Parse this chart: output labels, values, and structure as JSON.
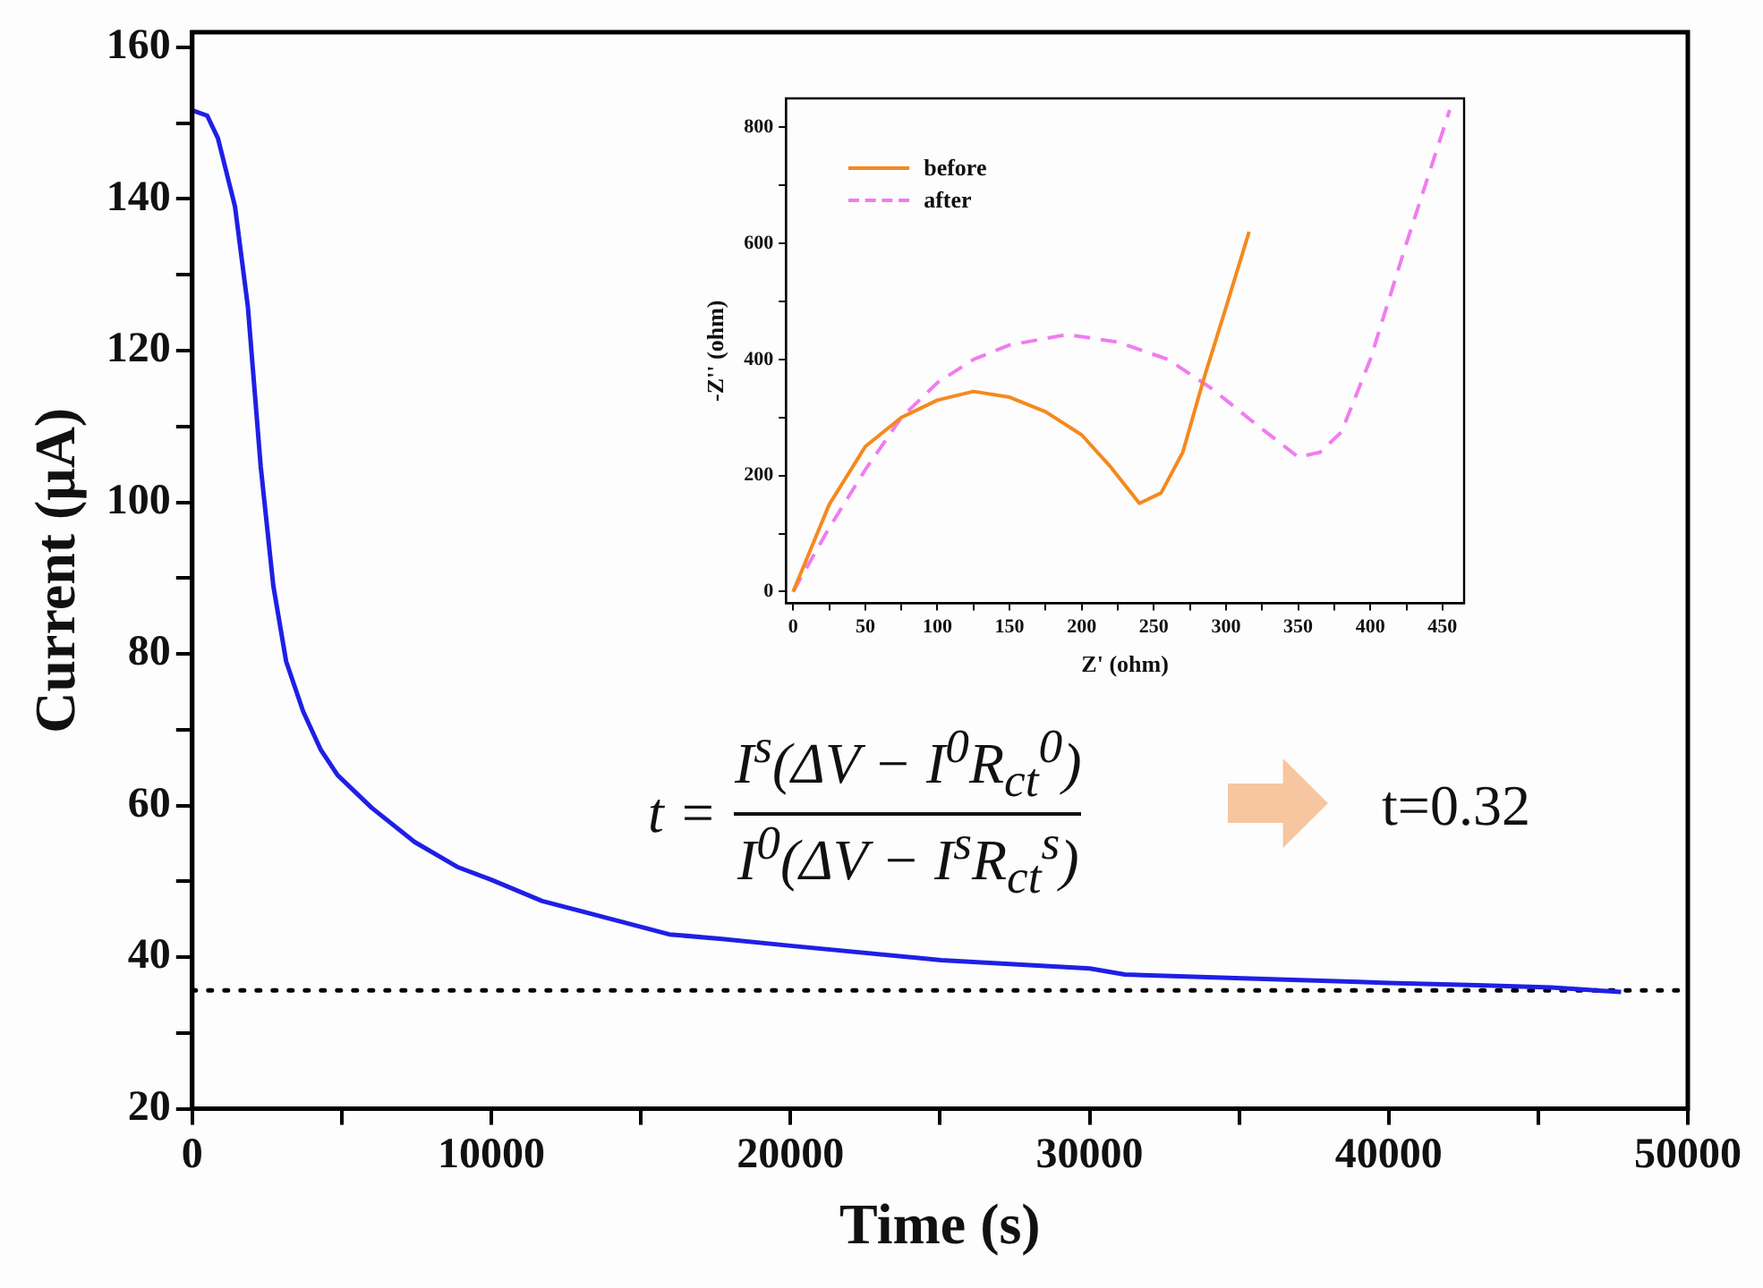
{
  "chart_data": [
    {
      "type": "line",
      "xlabel": "Time (s)",
      "ylabel": "Current (μA)",
      "x": [
        0,
        500,
        860,
        1430,
        1860,
        2290,
        2710,
        3140,
        3710,
        4290,
        4860,
        6000,
        7430,
        8860,
        10000,
        11700,
        13450,
        15950,
        17710,
        20000,
        25040,
        30000,
        31180,
        35110,
        40030,
        42980,
        45440,
        47770
      ],
      "series": [
        {
          "color": "#1f1fe6",
          "values": [
            151.7,
            151,
            148,
            139,
            125.8,
            104.7,
            89,
            79,
            72.4,
            67.4,
            64,
            59.7,
            55.2,
            51.9,
            50.2,
            47.4,
            45.6,
            43,
            42.4,
            41.5,
            39.6,
            38.5,
            37.7,
            37.2,
            36.6,
            36.3,
            36,
            35.4
          ]
        }
      ],
      "xlim": [
        0,
        50000
      ],
      "ylim": [
        20,
        162
      ],
      "xticks": [
        0,
        {
          "value": 5000,
          "label": null
        },
        10000,
        {
          "value": 15000,
          "label": null
        },
        20000,
        {
          "value": 25000,
          "label": null
        },
        30000,
        {
          "value": 35000,
          "label": null
        },
        40000,
        {
          "value": 45000,
          "label": null
        },
        50000
      ],
      "yticks": [
        20,
        {
          "value": 30,
          "label": null
        },
        40,
        {
          "value": 50,
          "label": null
        },
        60,
        {
          "value": 70,
          "label": null
        },
        80,
        {
          "value": 90,
          "label": null
        },
        100,
        {
          "value": 110,
          "label": null
        },
        120,
        {
          "value": 130,
          "label": null
        },
        140,
        {
          "value": 150,
          "label": null
        },
        160
      ],
      "ref_lines": [
        {
          "axis": "y",
          "value": 35.6,
          "color": "#000000",
          "line_style": "dotted"
        }
      ],
      "annotations": [
        "t =",
        "I$^{s}$(ΔV − I$^{0}$R$_{ct}$$^{0}$)",
        "I$^{0}$(ΔV − I$^{s}$R$_{ct}$$^{s}$)",
        "t=0.32"
      ],
      "grid": false,
      "marker": "none"
    },
    {
      "type": "line",
      "xlabel": "Z' (ohm)",
      "ylabel": "-Z'' (ohm)",
      "series": [
        {
          "name": "before",
          "color": "#f5891f",
          "line_style": "solid",
          "x": [
            0,
            10,
            25,
            50,
            75,
            100,
            125,
            150,
            175,
            200,
            220,
            240,
            255,
            270,
            285,
            300,
            316
          ],
          "values": [
            0,
            60,
            150,
            250,
            300,
            330,
            345,
            335,
            310,
            270,
            215,
            152,
            170,
            240,
            370,
            490,
            620
          ]
        },
        {
          "name": "after",
          "color": "#f07cf0",
          "line_style": "dashed",
          "x": [
            0,
            25,
            50,
            75,
            100,
            125,
            150,
            190,
            225,
            260,
            290,
            320,
            350,
            365,
            380,
            400,
            425,
            455
          ],
          "values": [
            0,
            110,
            210,
            300,
            360,
            400,
            425,
            443,
            430,
            400,
            350,
            290,
            232,
            240,
            275,
            400,
            600,
            830
          ]
        }
      ],
      "xlim": [
        -5,
        465
      ],
      "ylim": [
        -20,
        850
      ],
      "xticks": [
        0,
        {
          "value": 25,
          "label": null
        },
        50,
        {
          "value": 75,
          "label": null
        },
        100,
        {
          "value": 125,
          "label": null
        },
        150,
        {
          "value": 175,
          "label": null
        },
        200,
        {
          "value": 225,
          "label": null
        },
        250,
        {
          "value": 275,
          "label": null
        },
        300,
        {
          "value": 325,
          "label": null
        },
        350,
        {
          "value": 375,
          "label": null
        },
        400,
        {
          "value": 425,
          "label": null
        },
        450
      ],
      "yticks": [
        0,
        {
          "value": 100,
          "label": null
        },
        200,
        {
          "value": 300,
          "label": null
        },
        400,
        {
          "value": 500,
          "label": null
        },
        600,
        {
          "value": 700,
          "label": null
        },
        800
      ],
      "legend": "top left",
      "grid": false,
      "marker": "none"
    }
  ]
}
